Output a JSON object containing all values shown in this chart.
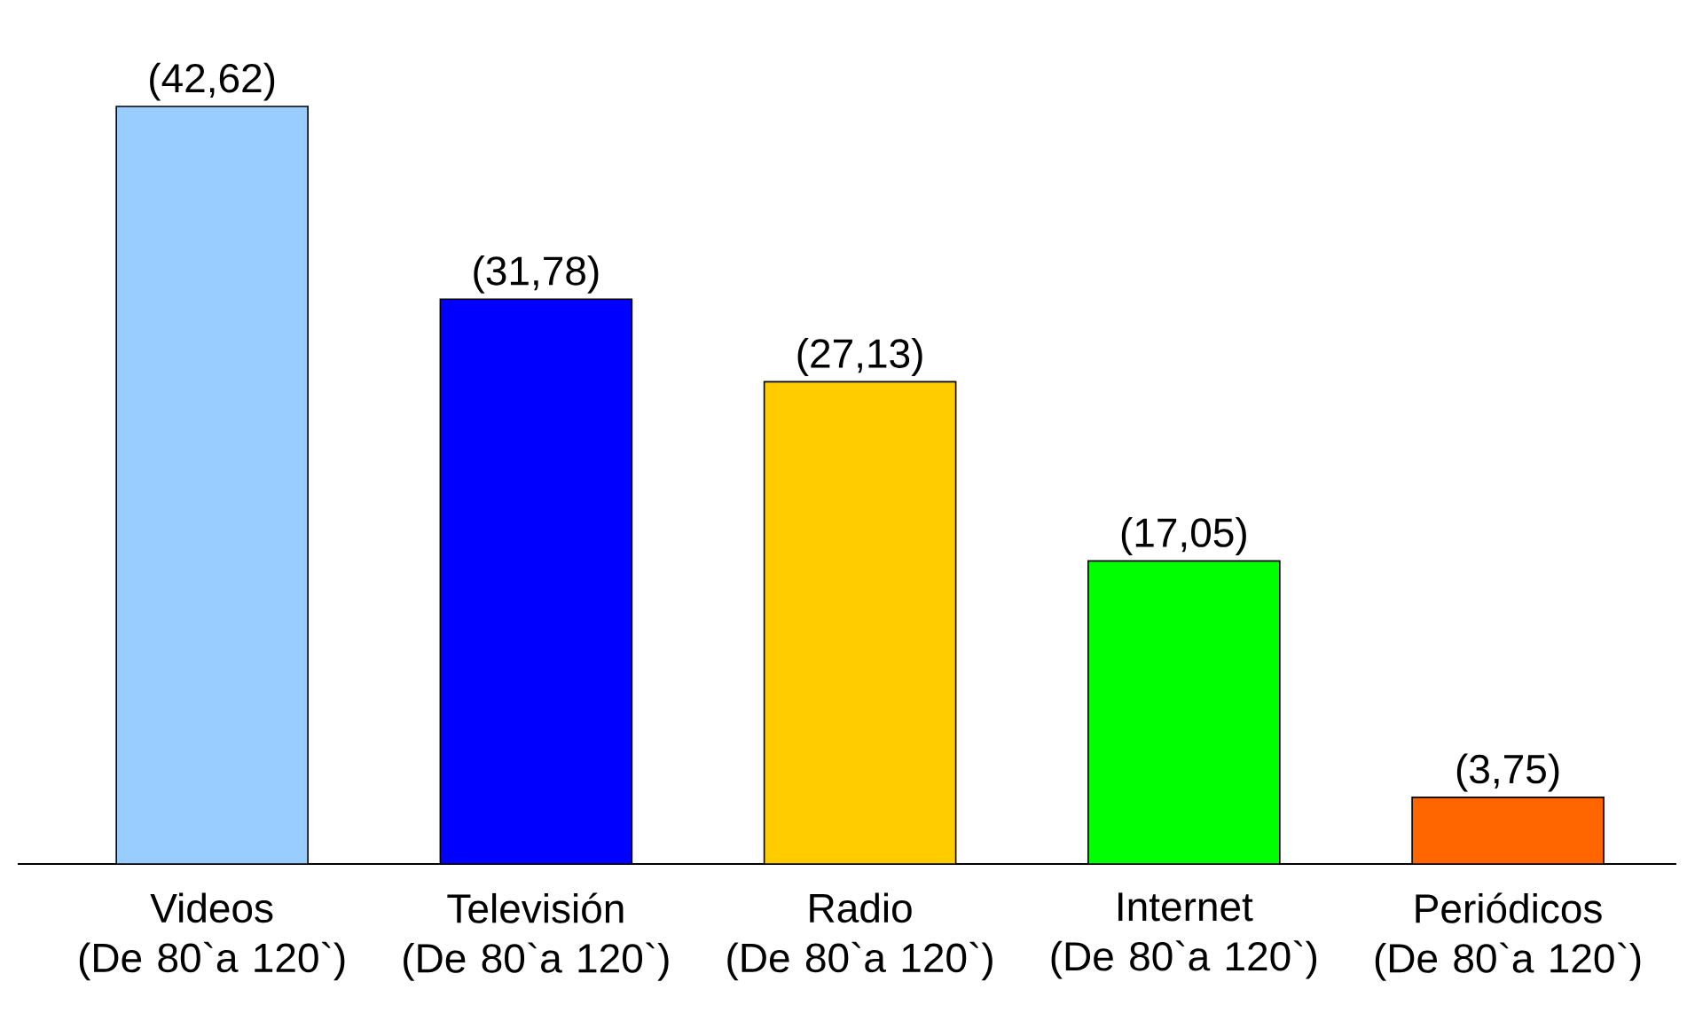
{
  "chart_data": {
    "type": "bar",
    "categories": [
      "Videos\n(De 80`a 120`)",
      "Televisión\n(De 80`a 120`)",
      "Radio\n(De 80`a 120`)",
      "Internet\n(De 80`a 120`)",
      "Periódicos\n(De 80`a 120`)"
    ],
    "values": [
      42.62,
      31.78,
      27.13,
      17.05,
      3.75
    ],
    "value_labels": [
      "(42,62)",
      "(31,78)",
      "(27,13)",
      "(17,05)",
      "(3,75)"
    ],
    "colors": [
      "#99ccff",
      "#0000ff",
      "#ffcc00",
      "#00ff00",
      "#ff6600"
    ]
  }
}
